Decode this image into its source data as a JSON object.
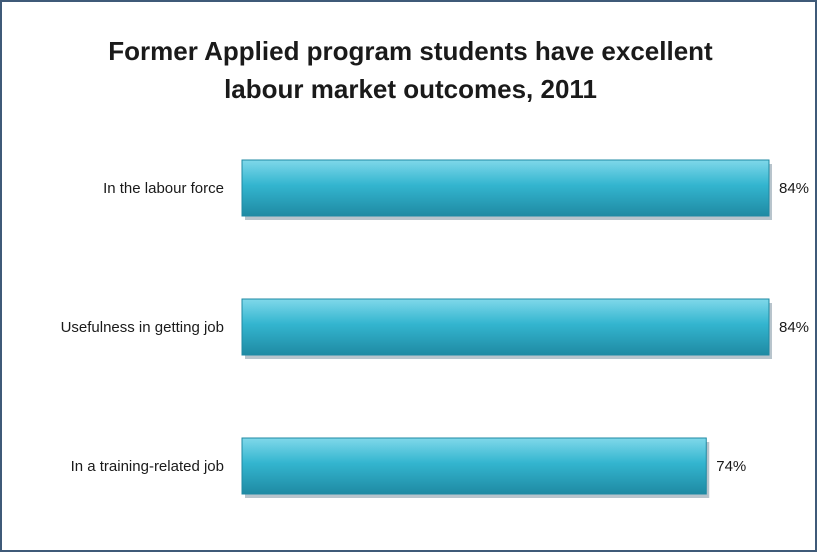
{
  "title_lines": [
    "Former Applied program students have excellent",
    "labour market outcomes, 2011"
  ],
  "colors": {
    "bar": "#33b5cf",
    "bar_light": "#7fd8ea",
    "bar_dark": "#1f8aa3",
    "border": "#3f5a78"
  },
  "chart_data": {
    "type": "bar",
    "orientation": "horizontal",
    "title": "Former Applied program students have excellent labour market outcomes, 2011",
    "categories": [
      "In the labour force",
      "Usefulness in getting job",
      "In a training-related job"
    ],
    "values": [
      84,
      84,
      74
    ],
    "value_labels": [
      "84%",
      "84%",
      "74%"
    ],
    "unit": "%",
    "xlabel": "",
    "ylabel": "",
    "grid": false,
    "legend": "none"
  }
}
